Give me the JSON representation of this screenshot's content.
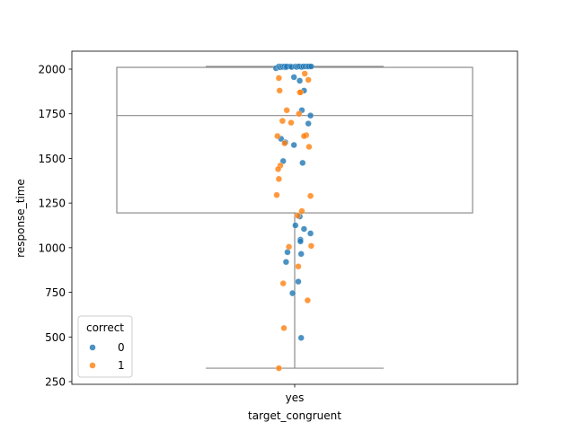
{
  "chart_data": {
    "type": "box-strip",
    "xlabel": "target_congruent",
    "ylabel": "response_time",
    "categories": [
      "yes"
    ],
    "ylim": [
      250,
      2000
    ],
    "yticks": [
      250,
      500,
      750,
      1000,
      1250,
      1500,
      1750,
      2000
    ],
    "box": {
      "whisker_low": 325,
      "q1": 1195,
      "median": 1740,
      "q3": 2010,
      "whisker_high": 2015
    },
    "legend": {
      "title": "correct",
      "position": "lower-left",
      "entries": [
        {
          "label": "0",
          "color": "#1f77b4"
        },
        {
          "label": "1",
          "color": "#ff7f0e"
        }
      ]
    },
    "series": [
      {
        "name": "0",
        "color": "#1f77b4",
        "points": [
          {
            "x": -0.26,
            "y": 2005
          },
          {
            "x": -0.22,
            "y": 2015
          },
          {
            "x": -0.2,
            "y": 2010
          },
          {
            "x": -0.18,
            "y": 2015
          },
          {
            "x": -0.16,
            "y": 2012
          },
          {
            "x": -0.14,
            "y": 2015
          },
          {
            "x": -0.12,
            "y": 2010
          },
          {
            "x": -0.11,
            "y": 2015
          },
          {
            "x": -0.06,
            "y": 2015
          },
          {
            "x": -0.04,
            "y": 2012
          },
          {
            "x": 0.01,
            "y": 2015
          },
          {
            "x": 0.03,
            "y": 2012
          },
          {
            "x": 0.05,
            "y": 2015
          },
          {
            "x": 0.07,
            "y": 2015
          },
          {
            "x": 0.1,
            "y": 2012
          },
          {
            "x": 0.12,
            "y": 2015
          },
          {
            "x": 0.15,
            "y": 2015
          },
          {
            "x": 0.18,
            "y": 2015
          },
          {
            "x": 0.2,
            "y": 2015
          },
          {
            "x": 0.23,
            "y": 2015
          },
          {
            "x": -0.01,
            "y": 1955
          },
          {
            "x": 0.07,
            "y": 1935
          },
          {
            "x": 0.13,
            "y": 1880
          },
          {
            "x": 0.1,
            "y": 1770
          },
          {
            "x": 0.22,
            "y": 1740
          },
          {
            "x": 0.19,
            "y": 1695
          },
          {
            "x": -0.19,
            "y": 1610
          },
          {
            "x": -0.13,
            "y": 1590
          },
          {
            "x": -0.01,
            "y": 1575
          },
          {
            "x": -0.16,
            "y": 1485
          },
          {
            "x": 0.11,
            "y": 1475
          },
          {
            "x": 0.07,
            "y": 1175
          },
          {
            "x": 0.01,
            "y": 1125
          },
          {
            "x": 0.13,
            "y": 1105
          },
          {
            "x": 0.22,
            "y": 1080
          },
          {
            "x": 0.08,
            "y": 1045
          },
          {
            "x": 0.08,
            "y": 1035
          },
          {
            "x": -0.1,
            "y": 975
          },
          {
            "x": 0.09,
            "y": 965
          },
          {
            "x": -0.12,
            "y": 920
          },
          {
            "x": 0.05,
            "y": 810
          },
          {
            "x": -0.03,
            "y": 745
          },
          {
            "x": 0.09,
            "y": 495
          }
        ]
      },
      {
        "name": "1",
        "color": "#ff7f0e",
        "points": [
          {
            "x": 0.14,
            "y": 1975
          },
          {
            "x": -0.22,
            "y": 1950
          },
          {
            "x": 0.19,
            "y": 1940
          },
          {
            "x": -0.21,
            "y": 1880
          },
          {
            "x": 0.07,
            "y": 1870
          },
          {
            "x": 0.08,
            "y": 1870
          },
          {
            "x": -0.11,
            "y": 1770
          },
          {
            "x": 0.06,
            "y": 1750
          },
          {
            "x": -0.17,
            "y": 1710
          },
          {
            "x": -0.05,
            "y": 1700
          },
          {
            "x": 0.16,
            "y": 1630
          },
          {
            "x": -0.24,
            "y": 1625
          },
          {
            "x": 0.13,
            "y": 1625
          },
          {
            "x": -0.14,
            "y": 1585
          },
          {
            "x": 0.2,
            "y": 1565
          },
          {
            "x": -0.2,
            "y": 1460
          },
          {
            "x": -0.23,
            "y": 1440
          },
          {
            "x": -0.22,
            "y": 1385
          },
          {
            "x": -0.25,
            "y": 1295
          },
          {
            "x": 0.22,
            "y": 1290
          },
          {
            "x": 0.1,
            "y": 1205
          },
          {
            "x": 0.04,
            "y": 1180
          },
          {
            "x": 0.23,
            "y": 1010
          },
          {
            "x": -0.08,
            "y": 1005
          },
          {
            "x": 0.05,
            "y": 895
          },
          {
            "x": -0.16,
            "y": 800
          },
          {
            "x": 0.18,
            "y": 705
          },
          {
            "x": -0.15,
            "y": 550
          },
          {
            "x": -0.22,
            "y": 325
          }
        ]
      }
    ]
  }
}
